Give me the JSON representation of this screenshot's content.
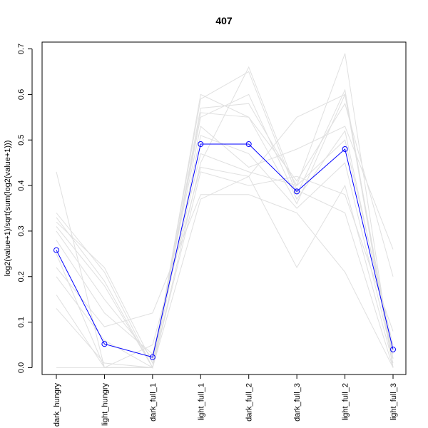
{
  "chart_data": {
    "type": "line",
    "title": "407",
    "xlabel": "",
    "ylabel": "log2(value+1)/sqrt(sum(log2(value+1)))",
    "categories": [
      "dark_hungry",
      "light_hungry",
      "dark_full_1",
      "light_full_1",
      "dark_full_2",
      "dark_full_3",
      "light_full_2",
      "light_full_3"
    ],
    "ylim": [
      -0.015,
      0.715
    ],
    "yticks": [
      0.0,
      0.1,
      0.2,
      0.3,
      0.4,
      0.5,
      0.6,
      0.7
    ],
    "ytick_labels": [
      "0.0",
      "0.1",
      "0.2",
      "0.3",
      "0.4",
      "0.5",
      "0.6",
      "0.7"
    ],
    "grid": false,
    "highlight_color": "#0000ff",
    "background_color": "#e0e0e0",
    "series": [
      {
        "values": [
          0.258,
          0.052,
          0.023,
          0.491,
          0.491,
          0.387,
          0.48,
          0.04
        ],
        "highlight": true
      },
      {
        "values": [
          0.43,
          0.0,
          0.0,
          0.59,
          0.65,
          0.38,
          0.61,
          0.0
        ]
      },
      {
        "values": [
          0.34,
          0.21,
          0.0,
          0.57,
          0.58,
          0.4,
          0.69,
          0.0
        ]
      },
      {
        "values": [
          0.33,
          0.19,
          0.0,
          0.56,
          0.55,
          0.36,
          0.6,
          0.02
        ]
      },
      {
        "values": [
          0.3,
          0.15,
          0.02,
          0.53,
          0.44,
          0.48,
          0.53,
          0.26
        ]
      },
      {
        "values": [
          0.25,
          0.0,
          0.05,
          0.44,
          0.42,
          0.22,
          0.4,
          0.01
        ]
      },
      {
        "values": [
          0.22,
          0.09,
          0.12,
          0.38,
          0.38,
          0.34,
          0.21,
          0.0
        ]
      },
      {
        "values": [
          0.16,
          0.0,
          0.0,
          0.45,
          0.66,
          0.39,
          0.34,
          0.0
        ]
      },
      {
        "values": [
          0.13,
          0.01,
          0.0,
          0.6,
          0.55,
          0.41,
          0.58,
          0.2
        ]
      },
      {
        "values": [
          0.0,
          0.0,
          0.0,
          0.37,
          0.42,
          0.55,
          0.6,
          0.0
        ]
      },
      {
        "values": [
          0.31,
          0.18,
          0.0,
          0.51,
          0.47,
          0.35,
          0.45,
          0.02
        ]
      },
      {
        "values": [
          0.28,
          0.12,
          0.03,
          0.47,
          0.43,
          0.4,
          0.5,
          0.05
        ]
      },
      {
        "values": [
          0.32,
          0.22,
          0.01,
          0.55,
          0.6,
          0.37,
          0.52,
          0.03
        ]
      },
      {
        "values": [
          0.2,
          0.06,
          0.0,
          0.43,
          0.4,
          0.42,
          0.38,
          0.08
        ]
      }
    ]
  }
}
